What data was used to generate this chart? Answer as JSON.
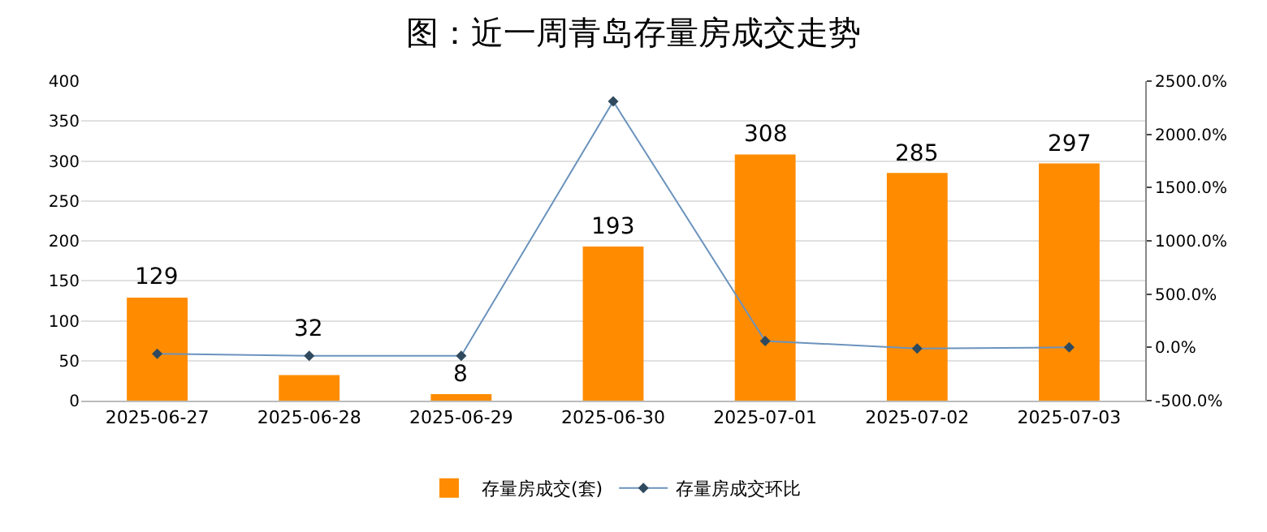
{
  "chart_data": {
    "type": "bar",
    "title": "图：近一周青岛存量房成交走势",
    "categories": [
      "2025-06-27",
      "2025-06-28",
      "2025-06-29",
      "2025-06-30",
      "2025-07-01",
      "2025-07-02",
      "2025-07-03"
    ],
    "series": [
      {
        "name": "存量房成交(套)",
        "color": "#ff8c00",
        "values": [
          129,
          32,
          8,
          193,
          308,
          285,
          297
        ],
        "value_labels": [
          "129",
          "32",
          "8",
          "193",
          "308",
          "285",
          "297"
        ]
      },
      {
        "name": "存量房成交环比",
        "type": "line",
        "axis": "y2",
        "color": "#6b93bd",
        "marker": "diamond",
        "values": [
          -60,
          -80,
          -80,
          2310,
          60,
          -10,
          0
        ]
      }
    ],
    "ylim": [
      0,
      400
    ],
    "yticks": [
      0,
      50,
      100,
      150,
      200,
      250,
      300,
      350,
      400
    ],
    "y2lim": [
      -500,
      2500
    ],
    "y2ticks": [
      {
        "value": -500,
        "label": "-500.0%"
      },
      {
        "value": 0,
        "label": "0.0%"
      },
      {
        "value": 500,
        "label": "500.0%"
      },
      {
        "value": 1000,
        "label": "1000.0%"
      },
      {
        "value": 1500,
        "label": "1500.0%"
      },
      {
        "value": 2000,
        "label": "2000.0%"
      },
      {
        "value": 2500,
        "label": "2500.0%"
      }
    ],
    "grid": "y",
    "legend": "bottom"
  }
}
